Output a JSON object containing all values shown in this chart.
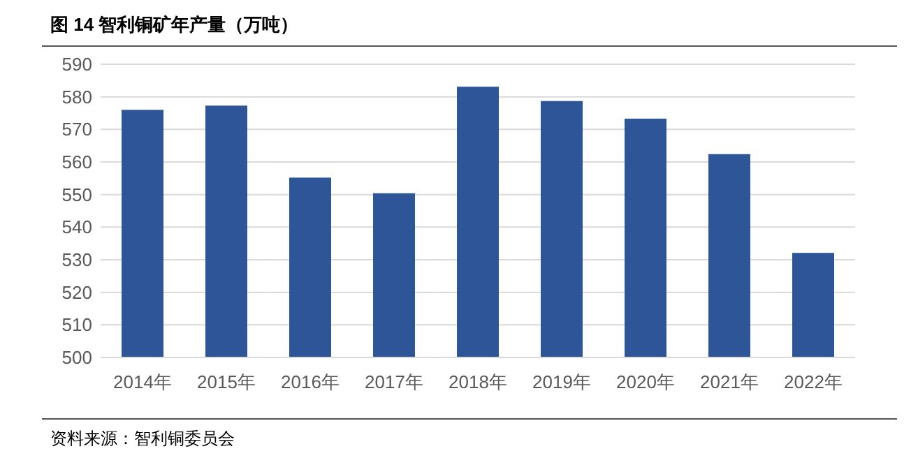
{
  "chart_data": {
    "type": "bar",
    "title": "图 14 智利铜矿年产量（万吨）",
    "categories": [
      "2014年",
      "2015年",
      "2016年",
      "2017年",
      "2018年",
      "2019年",
      "2020年",
      "2021年",
      "2022年"
    ],
    "values": [
      576.0,
      577.3,
      555.2,
      550.4,
      583.1,
      578.7,
      573.3,
      562.4,
      532.1
    ],
    "color": "#2e5597",
    "ylim": [
      500,
      590
    ],
    "yticks": [
      500,
      510,
      520,
      530,
      540,
      550,
      560,
      570,
      580,
      590
    ],
    "grid": "y",
    "annotations": [
      "资料来源：智利铜委员会"
    ]
  }
}
